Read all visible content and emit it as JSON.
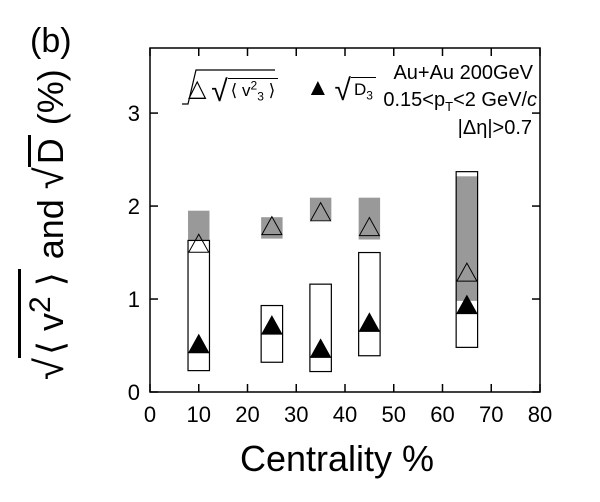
{
  "panel_label": "(b)",
  "y_axis_label": {
    "radical_v": "√",
    "bracket_open": "⟨ v",
    "power": "2",
    "bracket_close": " ⟩",
    "conjunction": " and ",
    "radical_d": "√",
    "d_letter": "D",
    "unit": " (%)"
  },
  "x_axis_label": "Centrality %",
  "annotations": {
    "system": "Au+Au 200GeV",
    "pt_prefix": "0.15<p",
    "pt_sub": "T",
    "pt_suffix": "<2 GeV/",
    "pt_c": "c",
    "eta": "|Δη|>0.7"
  },
  "legend": {
    "open_triangle_symbol": "△",
    "radical": "√",
    "open_label_main": "⟨ v",
    "open_label_sup": "2",
    "open_label_sub": "3",
    "open_label_close": " ⟩",
    "filled_triangle_symbol": "▲",
    "filled_label_main": "D",
    "filled_label_sub": "3"
  },
  "chart_data": {
    "type": "scatter",
    "title": "",
    "xlabel": "Centrality %",
    "ylabel": "√⟨v²⟩ and √D (%)",
    "xlim": [
      0,
      80
    ],
    "ylim": [
      0,
      3.7
    ],
    "x_ticks": [
      0,
      10,
      20,
      30,
      40,
      50,
      60,
      70,
      80
    ],
    "y_ticks": [
      0,
      1,
      2,
      3
    ],
    "grid": false,
    "legend_position": "top-left",
    "series": [
      {
        "name": "√⟨v3²⟩",
        "marker": "open-triangle",
        "x": [
          10,
          25,
          35,
          45,
          65
        ],
        "values": [
          1.58,
          1.77,
          1.92,
          1.76,
          1.27
        ],
        "syst_band_color": "#999999",
        "syst_low": [
          1.63,
          1.65,
          1.85,
          1.64,
          0.98
        ],
        "syst_high": [
          1.95,
          1.88,
          2.09,
          2.09,
          2.32
        ]
      },
      {
        "name": "√D3",
        "marker": "filled-triangle",
        "x": [
          10,
          25,
          35,
          45,
          65
        ],
        "values": [
          0.5,
          0.7,
          0.45,
          0.73,
          0.92
        ],
        "syst_box_color": "#000000",
        "syst_low": [
          0.23,
          0.32,
          0.22,
          0.39,
          0.48
        ],
        "syst_high": [
          1.63,
          0.93,
          1.16,
          1.5,
          2.37
        ]
      }
    ],
    "box_half_width": 2.2
  }
}
